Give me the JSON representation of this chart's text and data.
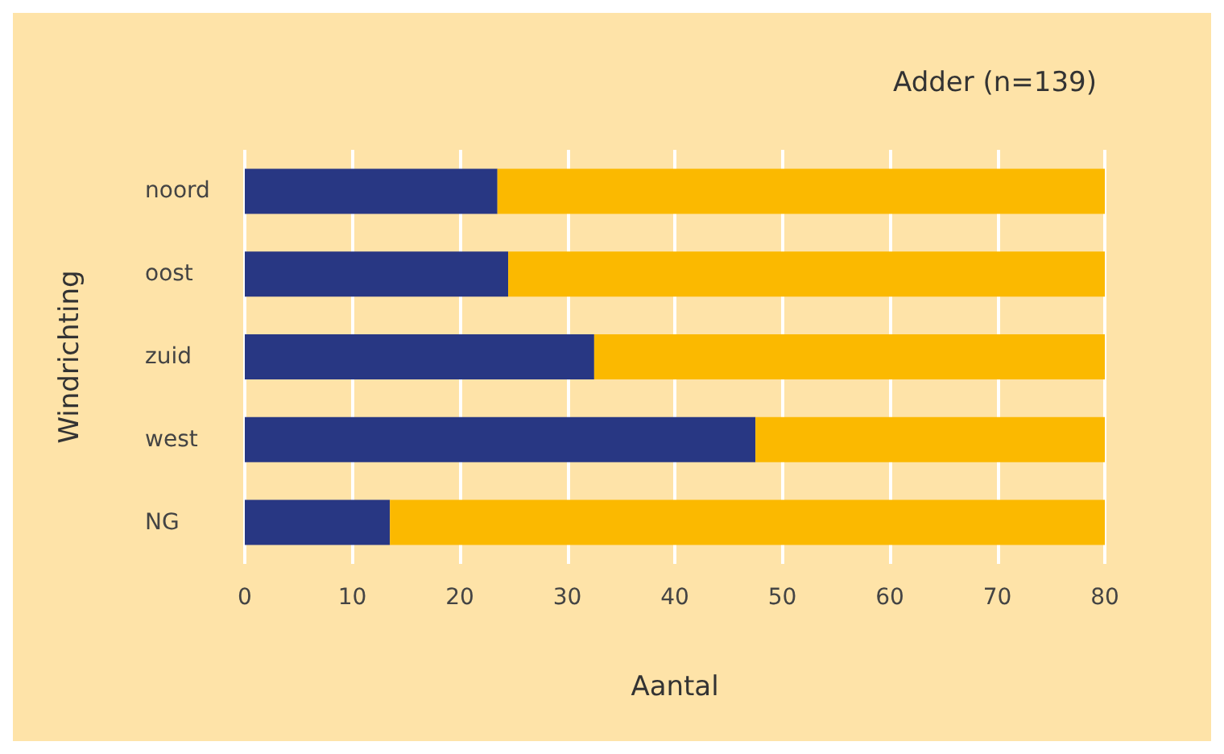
{
  "chart_data": {
    "type": "bar",
    "orientation": "horizontal",
    "stacked": true,
    "title": "Adder (n=139)",
    "xlabel": "Aantal",
    "ylabel": "Windrichting",
    "categories": [
      "noord",
      "oost",
      "zuid",
      "west",
      "NG"
    ],
    "series": [
      {
        "color": "#283783",
        "values": [
          23.5,
          24.5,
          32.5,
          47.5,
          13.5
        ]
      },
      {
        "color": "#fbb900",
        "values": [
          56.5,
          55.5,
          47.5,
          32.5,
          66.5
        ]
      }
    ],
    "xlim": [
      0,
      80
    ],
    "xticks": [
      0,
      10,
      20,
      30,
      40,
      50,
      60,
      70,
      80
    ],
    "grid": "x"
  }
}
